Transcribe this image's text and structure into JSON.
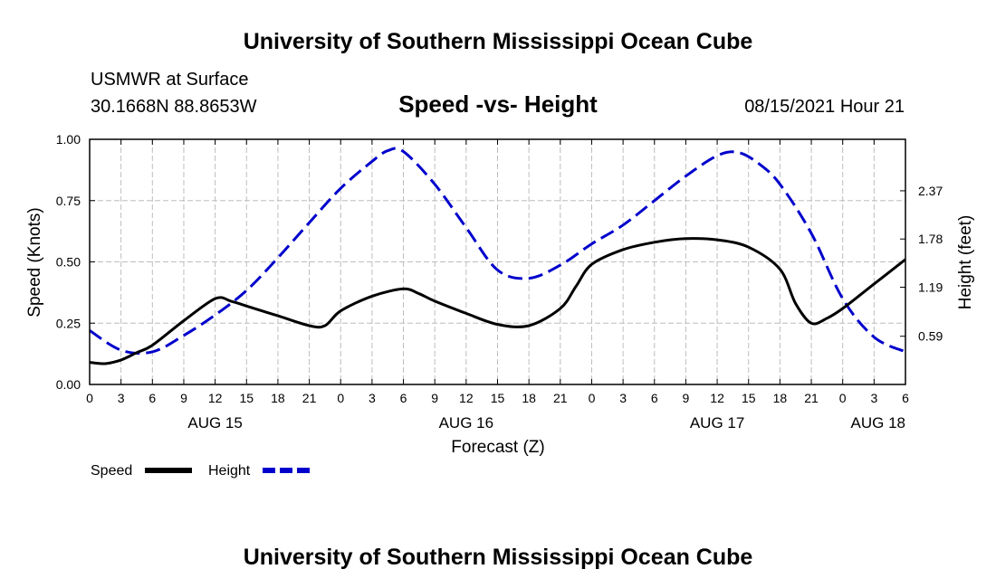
{
  "header": {
    "title_top": "University of Southern Mississippi Ocean Cube",
    "title_bottom": "University of Southern Mississippi Ocean Cube",
    "station": "USMWR at Surface",
    "location": "30.1668N  88.8653W",
    "chart_title": "Speed -vs- Height",
    "timestamp": "08/15/2021 Hour 21"
  },
  "chart_data": {
    "type": "line",
    "title": "Speed -vs- Height",
    "xlabel": "Forecast (Z)",
    "ylabel": "Speed (Knots)",
    "y2label": "Height (feet)",
    "x_unit": "hours since 2021-08-15 00Z",
    "xlim": [
      0,
      78
    ],
    "ylim": [
      0,
      1.0
    ],
    "y2lim": [
      0,
      3.0
    ],
    "grid": true,
    "x_ticks": [
      0,
      3,
      6,
      9,
      12,
      15,
      18,
      21,
      24,
      27,
      30,
      33,
      36,
      39,
      42,
      45,
      48,
      51,
      54,
      57,
      60,
      63,
      66,
      69,
      72,
      75,
      78
    ],
    "x_tick_labels": [
      "0",
      "3",
      "6",
      "9",
      "12",
      "15",
      "18",
      "21",
      "0",
      "3",
      "6",
      "9",
      "12",
      "15",
      "18",
      "21",
      "0",
      "3",
      "6",
      "9",
      "12",
      "15",
      "18",
      "21",
      "0",
      "3",
      "6"
    ],
    "y_ticks": [
      0,
      0.25,
      0.5,
      0.75,
      1.0
    ],
    "y_tick_labels": [
      "0.00",
      "0.25",
      "0.50",
      "0.75",
      "1.00"
    ],
    "y2_ticks": [
      0.59,
      1.19,
      1.78,
      2.37
    ],
    "y2_tick_labels": [
      "0.59",
      "1.19",
      "1.78",
      "2.37"
    ],
    "date_labels": [
      {
        "x": 12,
        "label": "AUG 15"
      },
      {
        "x": 36,
        "label": "AUG 16"
      },
      {
        "x": 60,
        "label": "AUG 17"
      },
      {
        "x": 78,
        "label": "AUG 18"
      }
    ],
    "legend_position": "bottom-left",
    "series": [
      {
        "name": "Speed",
        "axis": "left",
        "color": "#000000",
        "dash": "solid",
        "x": [
          0,
          1.5,
          3,
          4.5,
          6,
          9,
          12,
          13.5,
          15,
          18,
          21,
          22.5,
          24,
          27,
          30,
          31.5,
          33,
          36,
          39,
          42,
          45,
          46.5,
          48,
          51,
          54,
          57,
          60,
          63,
          66,
          67.5,
          69,
          70.5,
          72,
          75,
          78
        ],
        "values": [
          0.09,
          0.085,
          0.1,
          0.13,
          0.16,
          0.26,
          0.35,
          0.34,
          0.32,
          0.28,
          0.24,
          0.24,
          0.3,
          0.36,
          0.39,
          0.37,
          0.34,
          0.29,
          0.245,
          0.24,
          0.31,
          0.4,
          0.49,
          0.55,
          0.58,
          0.595,
          0.59,
          0.56,
          0.47,
          0.33,
          0.25,
          0.27,
          0.31,
          0.41,
          0.51
        ]
      },
      {
        "name": "Height",
        "axis": "right",
        "color": "#0000cc",
        "dash": "dashed",
        "x": [
          0,
          3,
          6,
          9,
          12,
          15,
          18,
          21,
          24,
          27,
          28.5,
          30,
          33,
          36,
          39,
          42,
          45,
          48,
          51,
          54,
          57,
          60,
          62,
          64,
          66,
          69,
          72,
          75,
          78
        ],
        "values": [
          0.66,
          0.42,
          0.4,
          0.6,
          0.85,
          1.15,
          1.55,
          1.98,
          2.4,
          2.73,
          2.86,
          2.85,
          2.45,
          1.92,
          1.4,
          1.3,
          1.46,
          1.72,
          1.95,
          2.25,
          2.55,
          2.8,
          2.84,
          2.7,
          2.45,
          1.85,
          1.05,
          0.58,
          0.4
        ]
      }
    ]
  }
}
